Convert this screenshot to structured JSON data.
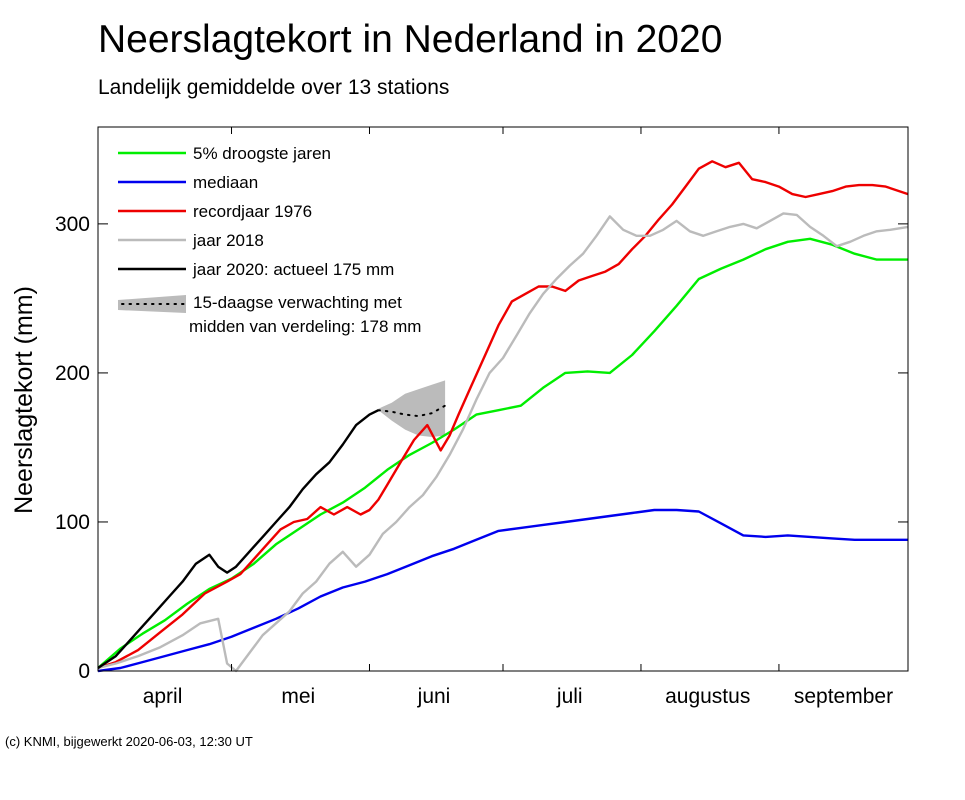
{
  "title": "Neerslagtekort in Nederland in 2020",
  "subtitle": "Landelijk gemiddelde over 13 stations",
  "footer": "(c) KNMI, bijgewerkt 2020-06-03, 12:30 UT",
  "chart_data": {
    "type": "line",
    "title": "Neerslagtekort in Nederland in 2020",
    "subtitle": "Landelijk gemiddelde over 13 stations",
    "ylabel": "Neerslagtekort (mm)",
    "xlabel": "",
    "xlim": [
      "04-01",
      "09-30"
    ],
    "ylim": [
      0,
      365
    ],
    "yticks": [
      0,
      100,
      200,
      300
    ],
    "grid": false,
    "legend_position": "top-left",
    "months": [
      {
        "label": "april",
        "start": "04-01",
        "end": "04-30"
      },
      {
        "label": "mei",
        "start": "05-01",
        "end": "05-31"
      },
      {
        "label": "juni",
        "start": "06-01",
        "end": "06-30"
      },
      {
        "label": "juli",
        "start": "07-01",
        "end": "07-31"
      },
      {
        "label": "augustus",
        "start": "08-01",
        "end": "08-31"
      },
      {
        "label": "september",
        "start": "09-01",
        "end": "09-30"
      }
    ],
    "series": [
      {
        "name": "5% droogste jaren",
        "color": "#00ee00",
        "x": [
          "04-01",
          "04-06",
          "04-11",
          "04-16",
          "04-21",
          "04-26",
          "05-01",
          "05-06",
          "05-11",
          "05-16",
          "05-21",
          "05-26",
          "05-31",
          "06-05",
          "06-10",
          "06-15",
          "06-20",
          "06-25",
          "06-30",
          "07-05",
          "07-10",
          "07-15",
          "07-20",
          "07-25",
          "07-30",
          "08-04",
          "08-09",
          "08-14",
          "08-19",
          "08-24",
          "08-29",
          "09-03",
          "09-08",
          "09-13",
          "09-18",
          "09-23",
          "09-30"
        ],
        "y": [
          2,
          15,
          25,
          34,
          45,
          55,
          62,
          72,
          85,
          95,
          105,
          113,
          123,
          135,
          145,
          153,
          162,
          172,
          175,
          178,
          190,
          200,
          201,
          200,
          212,
          228,
          245,
          263,
          270,
          276,
          283,
          288,
          290,
          286,
          280,
          276,
          276
        ]
      },
      {
        "name": "mediaan",
        "color": "#0000ee",
        "x": [
          "04-01",
          "04-06",
          "04-11",
          "04-16",
          "04-21",
          "04-26",
          "05-01",
          "05-06",
          "05-11",
          "05-16",
          "05-21",
          "05-26",
          "05-31",
          "06-05",
          "06-10",
          "06-15",
          "06-20",
          "06-25",
          "06-30",
          "07-05",
          "07-10",
          "07-15",
          "07-20",
          "07-25",
          "07-30",
          "08-04",
          "08-09",
          "08-14",
          "08-19",
          "08-24",
          "08-29",
          "09-03",
          "09-08",
          "09-13",
          "09-18",
          "09-23",
          "09-30"
        ],
        "y": [
          0,
          2,
          6,
          10,
          14,
          18,
          23,
          29,
          35,
          42,
          50,
          56,
          60,
          65,
          71,
          77,
          82,
          88,
          94,
          96,
          98,
          100,
          102,
          104,
          106,
          108,
          108,
          107,
          99,
          91,
          90,
          91,
          90,
          89,
          88,
          88,
          88
        ]
      },
      {
        "name": "recordjaar 1976",
        "color": "#ee0000",
        "x": [
          "04-01",
          "04-05",
          "04-10",
          "04-15",
          "04-20",
          "04-25",
          "04-30",
          "05-03",
          "05-06",
          "05-09",
          "05-12",
          "05-15",
          "05-18",
          "05-21",
          "05-24",
          "05-27",
          "05-30",
          "06-01",
          "06-03",
          "06-05",
          "06-08",
          "06-11",
          "06-14",
          "06-17",
          "06-19",
          "06-21",
          "06-24",
          "06-27",
          "06-30",
          "07-03",
          "07-06",
          "07-09",
          "07-12",
          "07-15",
          "07-18",
          "07-21",
          "07-24",
          "07-27",
          "07-30",
          "08-02",
          "08-05",
          "08-08",
          "08-11",
          "08-14",
          "08-17",
          "08-20",
          "08-23",
          "08-26",
          "08-29",
          "09-01",
          "09-04",
          "09-07",
          "09-10",
          "09-13",
          "09-16",
          "09-19",
          "09-22",
          "09-25",
          "09-30"
        ],
        "y": [
          2,
          6,
          14,
          26,
          38,
          52,
          60,
          65,
          75,
          85,
          95,
          100,
          102,
          110,
          105,
          110,
          105,
          108,
          115,
          125,
          140,
          155,
          165,
          148,
          158,
          172,
          192,
          212,
          232,
          248,
          253,
          258,
          258,
          255,
          262,
          265,
          268,
          273,
          283,
          292,
          303,
          313,
          325,
          337,
          342,
          338,
          341,
          330,
          328,
          325,
          320,
          318,
          320,
          322,
          325,
          326,
          326,
          325,
          320
        ]
      },
      {
        "name": "jaar 2018",
        "color": "#bbbbbb",
        "x": [
          "04-01",
          "04-05",
          "04-10",
          "04-15",
          "04-20",
          "04-24",
          "04-28",
          "04-30",
          "05-02",
          "05-05",
          "05-08",
          "05-11",
          "05-14",
          "05-17",
          "05-20",
          "05-23",
          "05-26",
          "05-29",
          "06-01",
          "06-04",
          "06-07",
          "06-10",
          "06-13",
          "06-16",
          "06-19",
          "06-22",
          "06-25",
          "06-28",
          "07-01",
          "07-04",
          "07-07",
          "07-10",
          "07-13",
          "07-16",
          "07-19",
          "07-22",
          "07-25",
          "07-28",
          "07-31",
          "08-03",
          "08-06",
          "08-09",
          "08-12",
          "08-15",
          "08-18",
          "08-21",
          "08-24",
          "08-27",
          "08-30",
          "09-02",
          "09-05",
          "09-08",
          "09-11",
          "09-14",
          "09-17",
          "09-20",
          "09-23",
          "09-26",
          "09-30"
        ],
        "y": [
          2,
          5,
          10,
          16,
          24,
          32,
          35,
          5,
          0,
          12,
          24,
          32,
          40,
          52,
          60,
          72,
          80,
          70,
          78,
          92,
          100,
          110,
          118,
          130,
          145,
          162,
          182,
          200,
          210,
          225,
          240,
          253,
          263,
          272,
          280,
          292,
          305,
          296,
          292,
          292,
          296,
          302,
          295,
          292,
          295,
          298,
          300,
          297,
          302,
          307,
          306,
          298,
          292,
          285,
          288,
          292,
          295,
          296,
          298
        ]
      },
      {
        "name": "jaar 2020: actueel 175 mm",
        "color": "#000000",
        "x": [
          "04-01",
          "04-05",
          "04-08",
          "04-11",
          "04-14",
          "04-17",
          "04-20",
          "04-23",
          "04-26",
          "04-28",
          "04-30",
          "05-02",
          "05-05",
          "05-08",
          "05-11",
          "05-14",
          "05-17",
          "05-20",
          "05-23",
          "05-26",
          "05-29",
          "06-01",
          "06-03"
        ],
        "y": [
          2,
          10,
          20,
          30,
          40,
          50,
          60,
          72,
          78,
          70,
          66,
          70,
          80,
          90,
          100,
          110,
          122,
          132,
          140,
          152,
          165,
          172,
          175
        ]
      }
    ],
    "forecast": {
      "name": "15-daagse verwachting met midden van verdeling: 178 mm",
      "color": "#bbbbbb",
      "value": 178,
      "x": [
        "06-03",
        "06-06",
        "06-09",
        "06-12",
        "06-15",
        "06-18"
      ],
      "mid": [
        175,
        174,
        172,
        171,
        173,
        178
      ],
      "low": [
        175,
        168,
        162,
        158,
        157,
        158
      ],
      "high": [
        176,
        180,
        186,
        189,
        192,
        195
      ]
    }
  }
}
